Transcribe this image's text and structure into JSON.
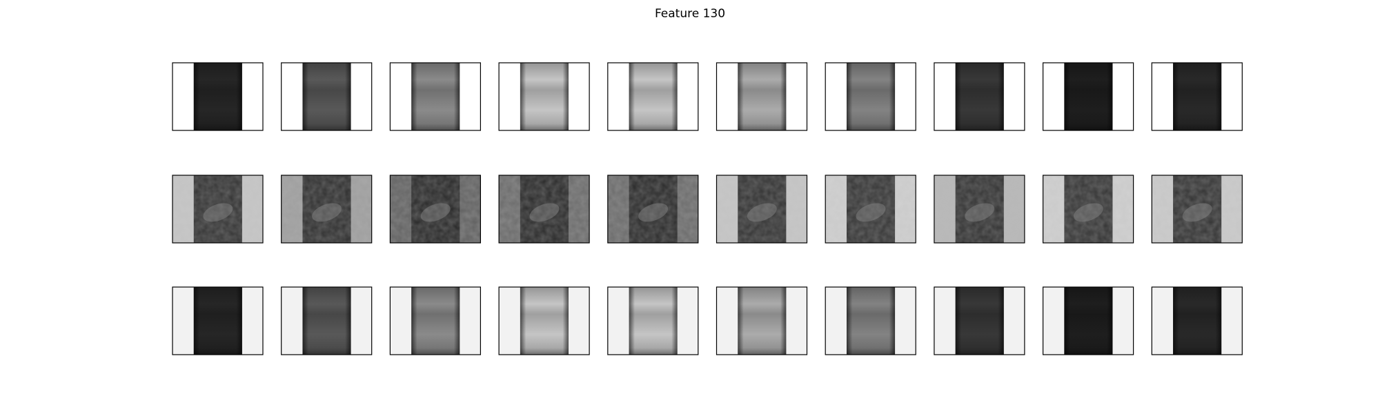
{
  "title": "Feature 130"
}
